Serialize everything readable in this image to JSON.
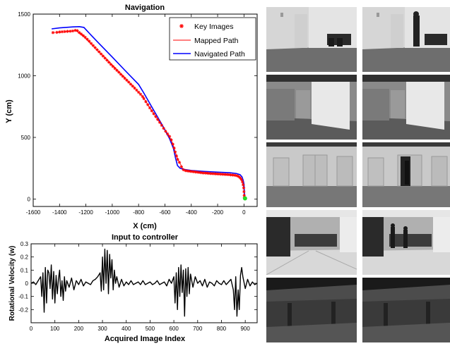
{
  "chart_data": [
    {
      "type": "line",
      "title": "Navigation",
      "xlabel": "X (cm)",
      "ylabel": "Y (cm)",
      "xlim": [
        -1600,
        100
      ],
      "ylim": [
        -60,
        1500
      ],
      "x_ticks": [
        -1600,
        -1400,
        -1200,
        -1000,
        -800,
        -600,
        -400,
        -200,
        0
      ],
      "y_ticks": [
        0,
        500,
        1000,
        1500
      ],
      "legend_position": "top-right",
      "legend": [
        "Key Images",
        "Mapped Path",
        "Navigated Path"
      ],
      "series": [
        {
          "name": "Key Images",
          "marker": "*",
          "color": "#ff0000",
          "points": [
            [
              -1450,
              1350
            ],
            [
              -1420,
              1352
            ],
            [
              -1400,
              1355
            ],
            [
              -1380,
              1357
            ],
            [
              -1360,
              1358
            ],
            [
              -1340,
              1360
            ],
            [
              -1320,
              1361
            ],
            [
              -1300,
              1363
            ],
            [
              -1280,
              1368
            ],
            [
              -1265,
              1365
            ],
            [
              -1250,
              1350
            ],
            [
              -1235,
              1338
            ],
            [
              -1220,
              1325
            ],
            [
              -1205,
              1312
            ],
            [
              -1190,
              1296
            ],
            [
              -1175,
              1280
            ],
            [
              -1160,
              1262
            ],
            [
              -1145,
              1245
            ],
            [
              -1130,
              1228
            ],
            [
              -1115,
              1211
            ],
            [
              -1100,
              1194
            ],
            [
              -1085,
              1177
            ],
            [
              -1070,
              1160
            ],
            [
              -1055,
              1143
            ],
            [
              -1040,
              1126
            ],
            [
              -1025,
              1109
            ],
            [
              -1010,
              1092
            ],
            [
              -995,
              1076
            ],
            [
              -980,
              1060
            ],
            [
              -965,
              1044
            ],
            [
              -950,
              1028
            ],
            [
              -935,
              1012
            ],
            [
              -920,
              996
            ],
            [
              -905,
              980
            ],
            [
              -890,
              964
            ],
            [
              -875,
              948
            ],
            [
              -860,
              932
            ],
            [
              -845,
              916
            ],
            [
              -830,
              900
            ],
            [
              -815,
              883
            ],
            [
              -800,
              866
            ],
            [
              -785,
              850
            ],
            [
              -770,
              832
            ],
            [
              -760,
              815
            ],
            [
              -745,
              790
            ],
            [
              -730,
              765
            ],
            [
              -715,
              740
            ],
            [
              -700,
              716
            ],
            [
              -685,
              692
            ],
            [
              -670,
              668
            ],
            [
              -655,
              645
            ],
            [
              -640,
              622
            ],
            [
              -625,
              598
            ],
            [
              -610,
              574
            ],
            [
              -595,
              550
            ],
            [
              -580,
              528
            ],
            [
              -565,
              508
            ],
            [
              -552,
              480
            ],
            [
              -540,
              446
            ],
            [
              -530,
              414
            ],
            [
              -522,
              382
            ],
            [
              -512,
              350
            ],
            [
              -503,
              322
            ],
            [
              -490,
              298
            ],
            [
              -475,
              262
            ],
            [
              -460,
              238
            ],
            [
              -445,
              231
            ],
            [
              -430,
              228
            ],
            [
              -415,
              226
            ],
            [
              -400,
              224
            ],
            [
              -385,
              222
            ],
            [
              -370,
              220
            ],
            [
              -355,
              218
            ],
            [
              -340,
              216
            ],
            [
              -325,
              214
            ],
            [
              -310,
              212
            ],
            [
              -295,
              211
            ],
            [
              -280,
              210
            ],
            [
              -265,
              208
            ],
            [
              -250,
              207
            ],
            [
              -235,
              206
            ],
            [
              -220,
              205
            ],
            [
              -205,
              204
            ],
            [
              -190,
              203
            ],
            [
              -175,
              202
            ],
            [
              -160,
              201
            ],
            [
              -145,
              200
            ],
            [
              -130,
              199
            ],
            [
              -115,
              198
            ],
            [
              -100,
              196
            ],
            [
              -85,
              195
            ],
            [
              -70,
              193
            ],
            [
              -55,
              190
            ],
            [
              -42,
              184
            ],
            [
              -30,
              174
            ],
            [
              -20,
              160
            ],
            [
              -12,
              140
            ],
            [
              -6,
              116
            ],
            [
              -2,
              90
            ],
            [
              0,
              60
            ],
            [
              2,
              30
            ],
            [
              3,
              12
            ]
          ]
        },
        {
          "name": "Mapped Path",
          "color": "#ff0000",
          "points": [
            [
              -1450,
              1350
            ],
            [
              -1300,
              1363
            ],
            [
              -1270,
              1366
            ],
            [
              -1200,
              1302
            ],
            [
              -1100,
              1194
            ],
            [
              -1000,
              1087
            ],
            [
              -900,
              977
            ],
            [
              -800,
              866
            ],
            [
              -770,
              832
            ],
            [
              -700,
              716
            ],
            [
              -600,
              562
            ],
            [
              -565,
              508
            ],
            [
              -540,
              446
            ],
            [
              -520,
              376
            ],
            [
              -503,
              322
            ],
            [
              -480,
              280
            ],
            [
              -460,
              238
            ],
            [
              -430,
              228
            ],
            [
              -300,
              212
            ],
            [
              -150,
              200
            ],
            [
              -60,
              191
            ],
            [
              -30,
              174
            ],
            [
              -12,
              140
            ],
            [
              -2,
              90
            ],
            [
              3,
              12
            ]
          ]
        },
        {
          "name": "Navigated Path",
          "color": "#0000ff",
          "points": [
            [
              -1460,
              1380
            ],
            [
              -1400,
              1388
            ],
            [
              -1300,
              1396
            ],
            [
              -1250,
              1398
            ],
            [
              -1215,
              1392
            ],
            [
              -1170,
              1340
            ],
            [
              -1100,
              1262
            ],
            [
              -1000,
              1152
            ],
            [
              -900,
              1040
            ],
            [
              -800,
              930
            ],
            [
              -760,
              860
            ],
            [
              -700,
              748
            ],
            [
              -620,
              600
            ],
            [
              -565,
              490
            ],
            [
              -535,
              410
            ],
            [
              -520,
              335
            ],
            [
              -505,
              272
            ],
            [
              -485,
              250
            ],
            [
              -450,
              240
            ],
            [
              -400,
              232
            ],
            [
              -300,
              224
            ],
            [
              -200,
              218
            ],
            [
              -110,
              214
            ],
            [
              -60,
              208
            ],
            [
              -30,
              198
            ],
            [
              -15,
              180
            ],
            [
              -5,
              150
            ],
            [
              0,
              120
            ],
            [
              2,
              80
            ],
            [
              3,
              40
            ],
            [
              5,
              10
            ]
          ]
        },
        {
          "name": "",
          "marker": "o",
          "color": "#22dd22",
          "points": [
            [
              8,
              6
            ]
          ]
        }
      ]
    },
    {
      "type": "line",
      "title": "Input to controller",
      "xlabel": "Acquired Image Index",
      "ylabel": "Rotational Velocity (w)",
      "xlim": [
        0,
        950
      ],
      "ylim": [
        -0.3,
        0.3
      ],
      "x_ticks": [
        0,
        100,
        200,
        300,
        400,
        500,
        600,
        700,
        800,
        900
      ],
      "y_ticks": [
        -0.2,
        -0.1,
        0,
        0.1,
        0.2,
        0.3
      ],
      "y_tick_labels": [
        "-0.2",
        "-0.1",
        "0",
        "0.1",
        "0.2",
        "0.3"
      ],
      "series": [
        {
          "name": "",
          "color": "#000000",
          "x": [
            0,
            10,
            20,
            30,
            40,
            45,
            50,
            55,
            60,
            65,
            70,
            75,
            80,
            85,
            90,
            95,
            100,
            105,
            110,
            115,
            120,
            125,
            130,
            135,
            140,
            145,
            150,
            160,
            170,
            180,
            190,
            200,
            210,
            220,
            230,
            240,
            250,
            260,
            270,
            280,
            290,
            295,
            300,
            305,
            310,
            315,
            320,
            325,
            330,
            335,
            340,
            345,
            350,
            355,
            360,
            370,
            380,
            390,
            400,
            410,
            420,
            430,
            440,
            450,
            460,
            470,
            480,
            490,
            500,
            510,
            520,
            530,
            540,
            550,
            560,
            570,
            580,
            590,
            600,
            605,
            610,
            615,
            620,
            625,
            630,
            635,
            640,
            645,
            650,
            655,
            660,
            665,
            670,
            680,
            690,
            700,
            710,
            720,
            730,
            740,
            750,
            760,
            770,
            780,
            790,
            800,
            810,
            820,
            830,
            840,
            850,
            855,
            860,
            865,
            870,
            875,
            880,
            885,
            890,
            900,
            910,
            920,
            930,
            940,
            950
          ],
          "values": [
            0.0,
            0.01,
            -0.01,
            0.02,
            0.05,
            -0.1,
            0.08,
            -0.22,
            0.12,
            -0.15,
            0.1,
            0.08,
            -0.04,
            0.14,
            -0.12,
            0.09,
            -0.15,
            0.06,
            -0.08,
            0.03,
            0.1,
            -0.1,
            0.02,
            -0.13,
            0.05,
            -0.06,
            0.02,
            -0.03,
            0.04,
            -0.05,
            0.02,
            -0.01,
            0.03,
            -0.02,
            0.01,
            0.0,
            -0.01,
            0.02,
            0.03,
            0.05,
            0.08,
            -0.06,
            0.2,
            -0.05,
            0.26,
            0.0,
            0.25,
            -0.08,
            0.22,
            0.04,
            0.18,
            -0.05,
            0.1,
            0.0,
            0.05,
            -0.03,
            0.03,
            -0.02,
            0.01,
            -0.01,
            0.02,
            -0.01,
            0.0,
            0.01,
            -0.01,
            0.02,
            -0.01,
            0.0,
            0.01,
            -0.01,
            0.0,
            0.02,
            -0.01,
            0.0,
            0.01,
            -0.02,
            0.03,
            0.0,
            0.05,
            -0.15,
            0.08,
            -0.2,
            0.12,
            -0.1,
            0.14,
            -0.07,
            0.1,
            -0.25,
            0.11,
            -0.1,
            0.12,
            -0.08,
            0.07,
            -0.03,
            0.05,
            0.0,
            0.02,
            -0.02,
            0.03,
            -0.03,
            0.01,
            0.0,
            -0.02,
            0.02,
            0.0,
            -0.01,
            0.02,
            -0.01,
            0.01,
            0.03,
            -0.05,
            -0.2,
            0.05,
            -0.25,
            -0.05,
            -0.2,
            0.06,
            0.12,
            0.05,
            -0.04,
            0.03,
            -0.02,
            0.01,
            -0.01,
            0.0
          ]
        }
      ]
    }
  ],
  "photos": {
    "left_column": [
      "corridor-with-chairs",
      "open-door-corner",
      "hallway-double-doors",
      "open-lab-room",
      "desk-underside"
    ],
    "right_column": [
      "corridor-with-person",
      "open-door-corner",
      "hallway-door-with-person",
      "lab-room-with-people",
      "desk-underside"
    ]
  }
}
